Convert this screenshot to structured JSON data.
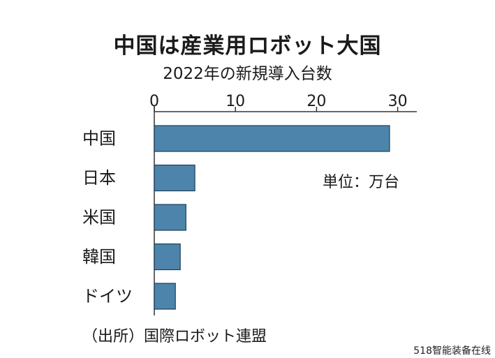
{
  "title": "中国は産業用ロボット大国",
  "subtitle": "2022年の新規導入台数",
  "unit_label": "単位：万台",
  "source": "（出所）国際ロボット連盟",
  "watermark": "518智能装备在线",
  "colors": {
    "bar": "#4d84ab",
    "bar_stroke": "#1f3f57",
    "axis": "#333333"
  },
  "chart_data": {
    "type": "bar",
    "orientation": "horizontal",
    "categories": [
      "中国",
      "日本",
      "米国",
      "韓国",
      "ドイツ"
    ],
    "values": [
      29.0,
      5.0,
      3.9,
      3.2,
      2.6
    ],
    "xlim": [
      0,
      32
    ],
    "xticks": [
      0,
      10,
      20,
      30
    ],
    "xtick_labels": [
      "0",
      "10",
      "20",
      "30"
    ],
    "axis_position": "top",
    "grid": false,
    "title": "中国は産業用ロボット大国",
    "subtitle": "2022年の新規導入台数",
    "unit": "単位：万台"
  }
}
